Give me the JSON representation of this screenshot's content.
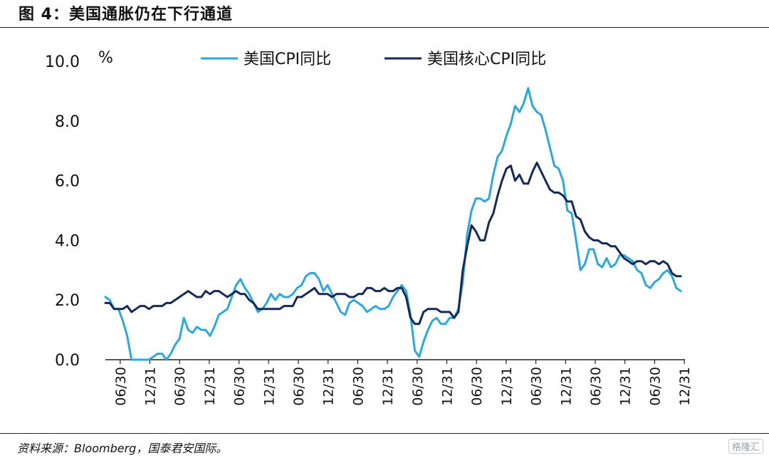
{
  "header": {
    "title": "图 4：美国通胀仍在下行通道"
  },
  "footer": {
    "source": "资料来源：Bloomberg，国泰君安国际。",
    "watermark": "格隆汇"
  },
  "chart_data": {
    "type": "line",
    "title": "",
    "xlabel": "",
    "ylabel": "%",
    "ylim": [
      0,
      10
    ],
    "yticks": [
      "0.0",
      "2.0",
      "4.0",
      "6.0",
      "8.0",
      "10.0"
    ],
    "xticks": [
      "06/30",
      "12/31",
      "06/30",
      "12/31",
      "06/30",
      "12/31",
      "06/30",
      "12/31",
      "06/30",
      "12/31",
      "06/30",
      "12/31",
      "06/30",
      "12/31",
      "06/30",
      "12/31",
      "06/30",
      "12/31",
      "06/30",
      "12/31"
    ],
    "x_start": "2014-06",
    "legend": "top",
    "series": [
      {
        "name": "美国CPI同比",
        "color": "#29a9e1",
        "values": [
          2.1,
          2.0,
          1.7,
          1.7,
          1.3,
          0.8,
          -0.1,
          0.0,
          -0.1,
          -0.2,
          0.0,
          0.1,
          0.2,
          0.2,
          0.0,
          0.2,
          0.5,
          0.7,
          1.4,
          1.0,
          0.9,
          1.1,
          1.0,
          1.0,
          0.8,
          1.1,
          1.5,
          1.6,
          1.7,
          2.1,
          2.5,
          2.7,
          2.4,
          2.2,
          1.9,
          1.6,
          1.7,
          1.9,
          2.2,
          2.0,
          2.2,
          2.1,
          2.1,
          2.2,
          2.4,
          2.5,
          2.8,
          2.9,
          2.9,
          2.7,
          2.3,
          2.5,
          2.2,
          1.9,
          1.6,
          1.5,
          1.9,
          2.0,
          1.9,
          1.8,
          1.6,
          1.7,
          1.8,
          1.7,
          1.7,
          1.8,
          2.1,
          2.3,
          2.5,
          2.3,
          1.5,
          0.3,
          0.1,
          0.6,
          1.0,
          1.3,
          1.4,
          1.2,
          1.2,
          1.4,
          1.4,
          1.7,
          2.6,
          4.2,
          5.0,
          5.4,
          5.4,
          5.3,
          5.4,
          6.2,
          6.8,
          7.0,
          7.5,
          7.9,
          8.5,
          8.3,
          8.6,
          9.1,
          8.5,
          8.3,
          8.2,
          7.7,
          7.1,
          6.5,
          6.4,
          6.0,
          5.0,
          4.9,
          4.0,
          3.0,
          3.2,
          3.7,
          3.7,
          3.2,
          3.1,
          3.4,
          3.1,
          3.2,
          3.5,
          3.5,
          3.4,
          3.3,
          3.0,
          2.9,
          2.5,
          2.4,
          2.6,
          2.7,
          2.9,
          3.0,
          2.8,
          2.4,
          2.3
        ]
      },
      {
        "name": "美国核心CPI同比",
        "color": "#14285a",
        "values": [
          1.9,
          1.9,
          1.7,
          1.7,
          1.7,
          1.8,
          1.6,
          1.7,
          1.8,
          1.8,
          1.7,
          1.8,
          1.8,
          1.8,
          1.9,
          1.9,
          2.0,
          2.1,
          2.2,
          2.3,
          2.2,
          2.1,
          2.1,
          2.3,
          2.2,
          2.3,
          2.3,
          2.2,
          2.1,
          2.2,
          2.3,
          2.2,
          2.2,
          2.0,
          1.9,
          1.7,
          1.7,
          1.7,
          1.7,
          1.7,
          1.7,
          1.8,
          1.8,
          1.8,
          2.1,
          2.1,
          2.2,
          2.3,
          2.4,
          2.2,
          2.2,
          2.2,
          2.1,
          2.2,
          2.2,
          2.2,
          2.1,
          2.1,
          2.2,
          2.2,
          2.4,
          2.4,
          2.3,
          2.3,
          2.4,
          2.3,
          2.3,
          2.4,
          2.4,
          2.1,
          1.4,
          1.2,
          1.2,
          1.6,
          1.7,
          1.7,
          1.7,
          1.6,
          1.6,
          1.6,
          1.4,
          1.6,
          3.0,
          3.8,
          4.5,
          4.3,
          4.0,
          4.0,
          4.6,
          4.9,
          5.5,
          6.0,
          6.4,
          6.5,
          6.0,
          6.2,
          5.9,
          5.9,
          6.3,
          6.6,
          6.3,
          6.0,
          5.7,
          5.6,
          5.6,
          5.5,
          5.3,
          5.3,
          4.8,
          4.7,
          4.3,
          4.1,
          4.0,
          4.0,
          3.9,
          3.9,
          3.8,
          3.8,
          3.6,
          3.4,
          3.3,
          3.2,
          3.3,
          3.3,
          3.2,
          3.3,
          3.3,
          3.2,
          3.3,
          3.2,
          2.9,
          2.8,
          2.8
        ]
      }
    ]
  }
}
